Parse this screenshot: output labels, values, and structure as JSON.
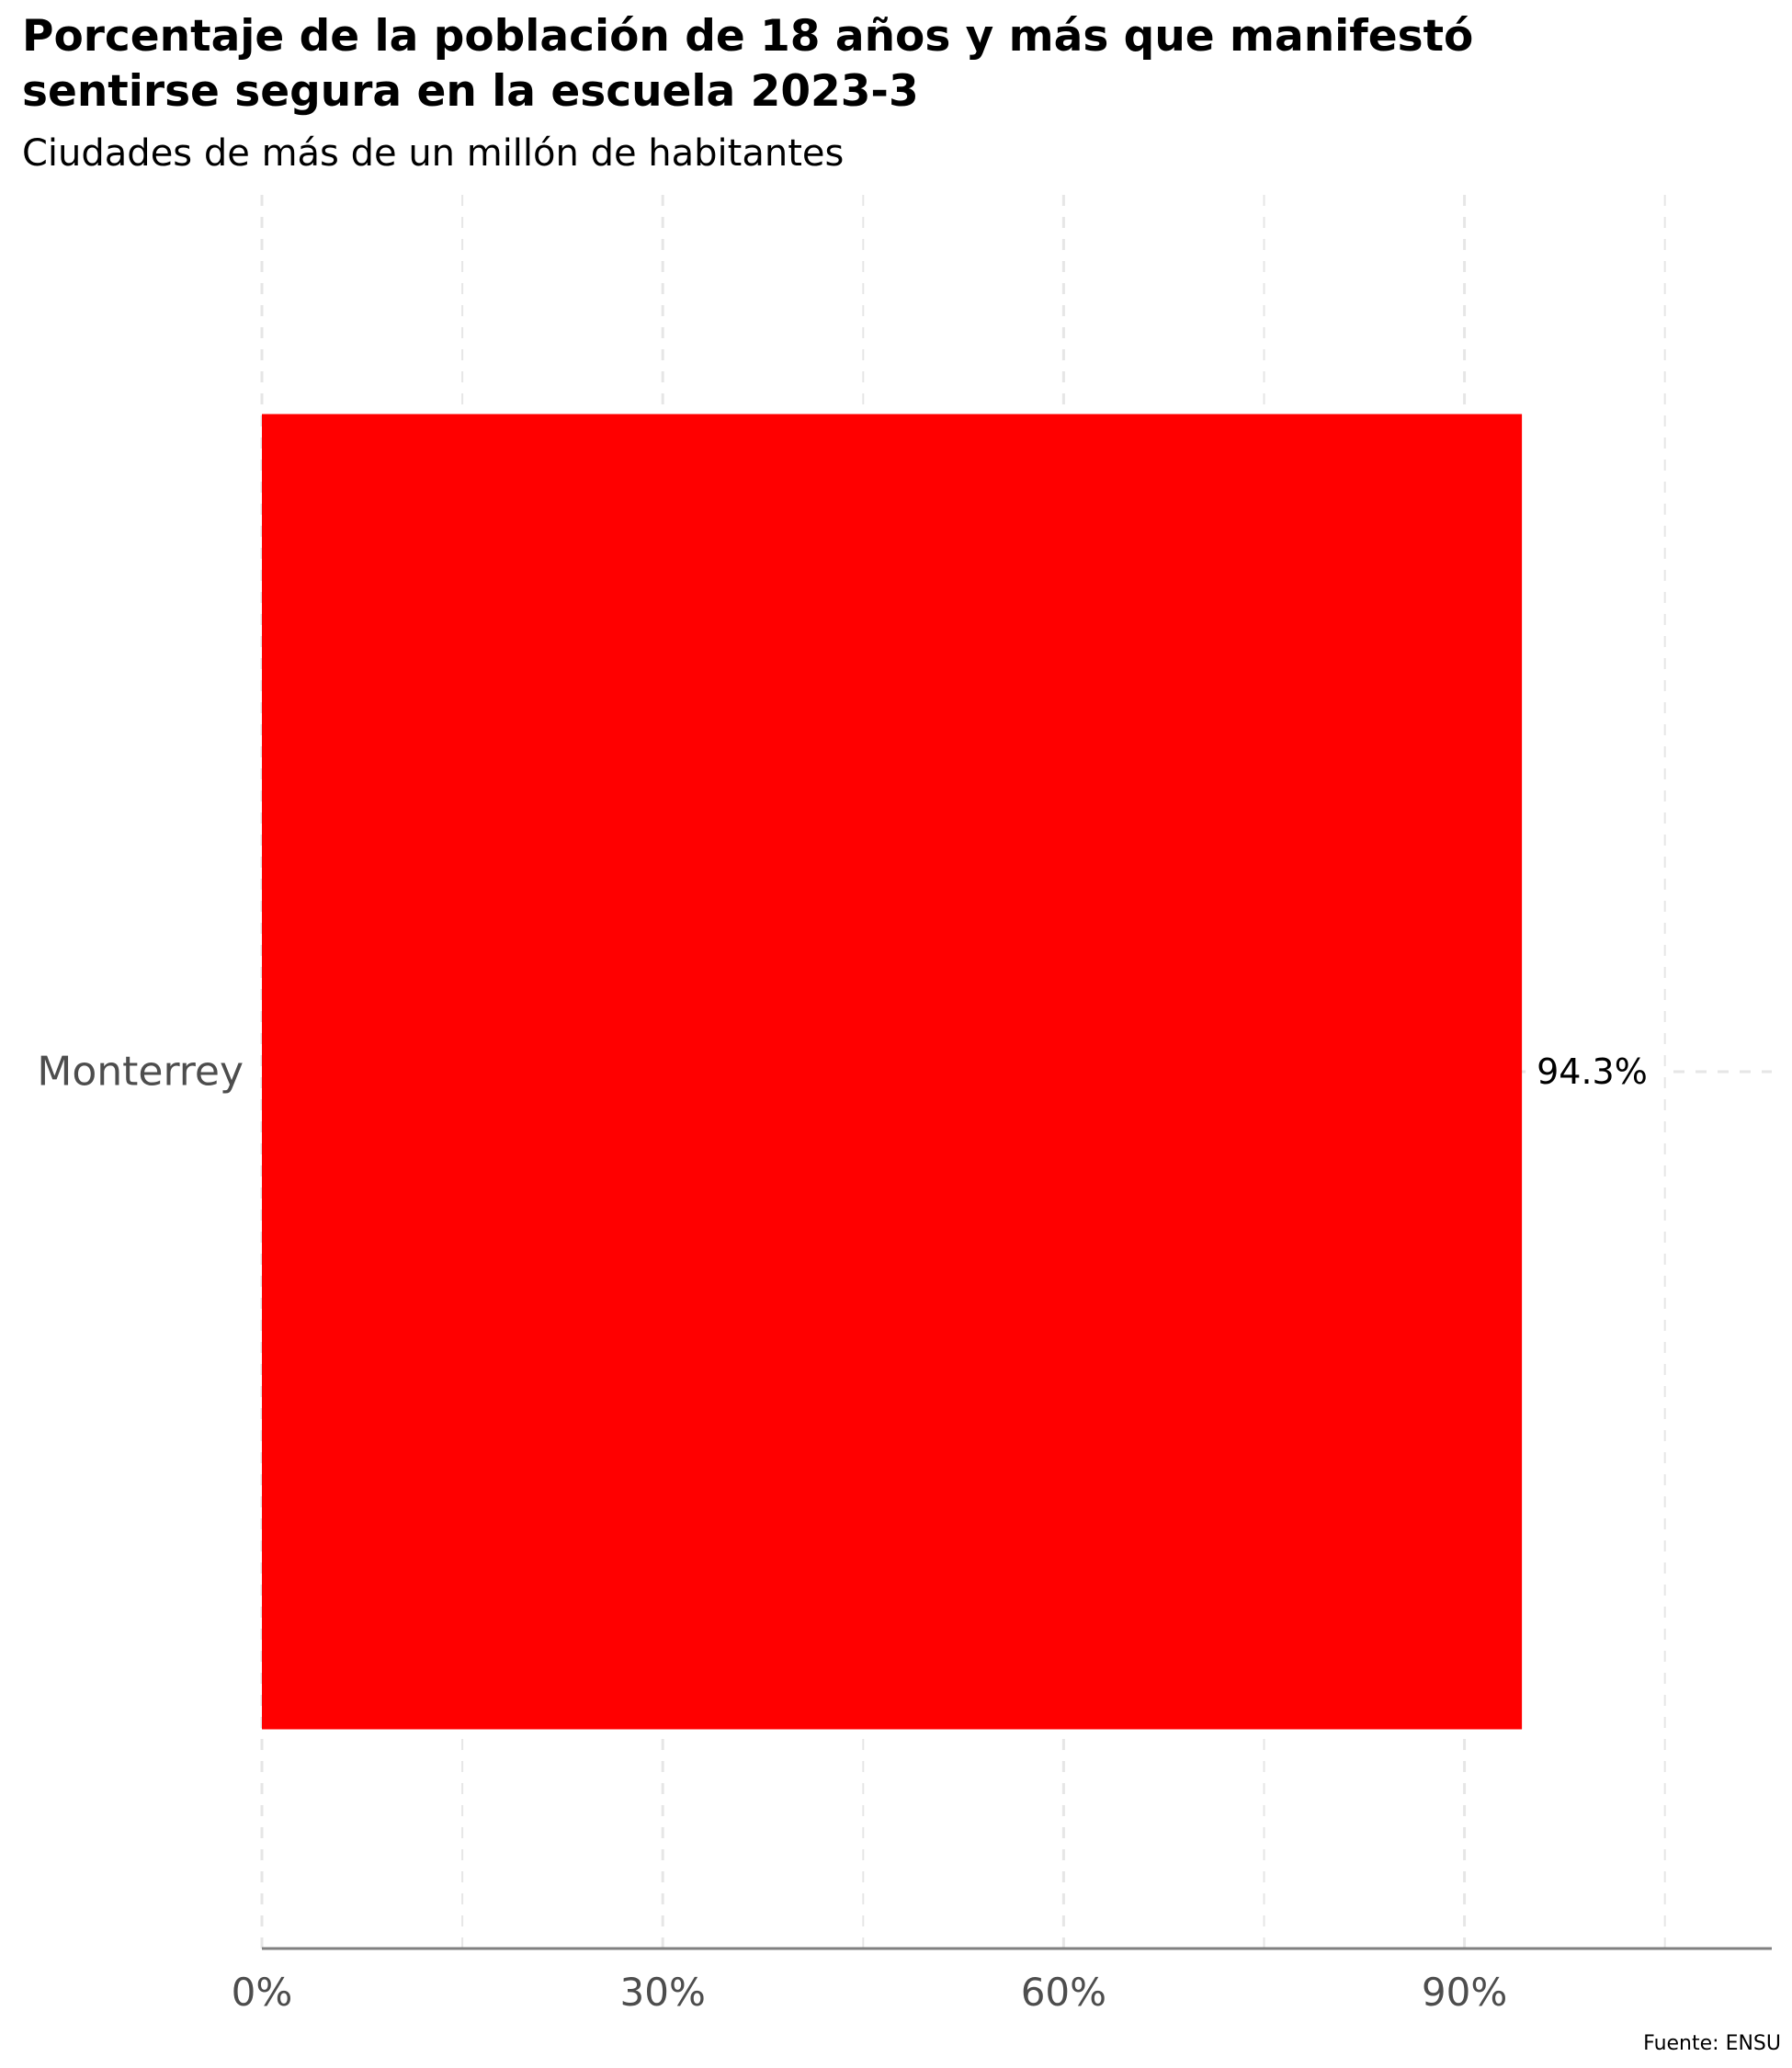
{
  "title": "Porcentaje de la población de 18 años y más que manifestó\nsentirse segura en la escuela 2023-3",
  "subtitle": "Ciudades de más de un millón de habitantes",
  "caption": "Fuente: ENSU",
  "chart_data": {
    "type": "bar",
    "orientation": "horizontal",
    "title": "Porcentaje de la población de 18 años y más que manifestó sentirse segura en la escuela 2023-3",
    "subtitle": "Ciudades de más de un millón de habitantes",
    "categories": [
      "Monterrey"
    ],
    "values": [
      94.3
    ],
    "data_labels": [
      "94.3%"
    ],
    "x_ticks": [
      0,
      30,
      60,
      90
    ],
    "x_tick_labels": [
      "0%",
      "30%",
      "60%",
      "90%"
    ],
    "xlim": [
      0,
      113
    ],
    "grid": "dashed vertical",
    "legend": "none",
    "colors": {
      "bar": "#ff0000",
      "axis": "#808080",
      "grid": "#e6e6e6",
      "tick_text": "#4d4d4d",
      "label_text": "#000000"
    }
  }
}
